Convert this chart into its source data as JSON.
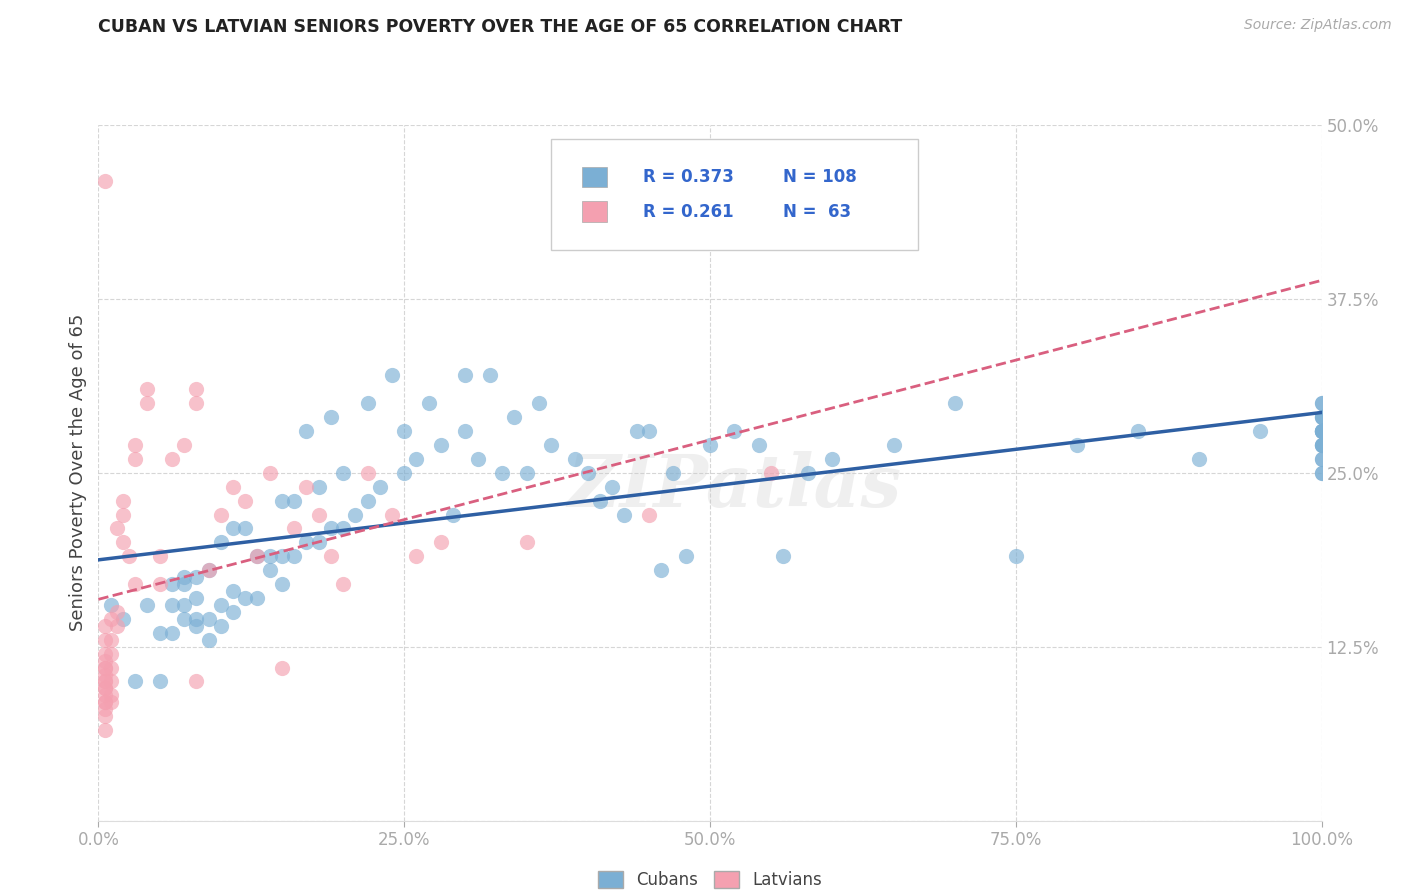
{
  "title": "CUBAN VS LATVIAN SENIORS POVERTY OVER THE AGE OF 65 CORRELATION CHART",
  "source": "Source: ZipAtlas.com",
  "ylabel": "Seniors Poverty Over the Age of 65",
  "xlim": [
    0.0,
    1.0
  ],
  "ylim": [
    0.0,
    0.5
  ],
  "xticks": [
    0.0,
    0.25,
    0.5,
    0.75,
    1.0
  ],
  "yticks": [
    0.0,
    0.125,
    0.25,
    0.375,
    0.5
  ],
  "xticklabels": [
    "0.0%",
    "25.0%",
    "50.0%",
    "75.0%",
    "100.0%"
  ],
  "yticklabels_right": [
    "",
    "12.5%",
    "25.0%",
    "37.5%",
    "50.0%"
  ],
  "cubans_R": "0.373",
  "cubans_N": "108",
  "latvians_R": "0.261",
  "latvians_N": "63",
  "blue_scatter": "#7BAFD4",
  "pink_scatter": "#F4A0B0",
  "line_blue": "#2E5FA3",
  "line_pink": "#D95F7F",
  "accent_color": "#3366CC",
  "legend_text_color": "#3366CC",
  "watermark": "ZIPatlas",
  "title_color": "#333333",
  "tick_color": "#5588CC",
  "cubans_x": [
    0.01,
    0.02,
    0.03,
    0.04,
    0.05,
    0.05,
    0.06,
    0.06,
    0.06,
    0.07,
    0.07,
    0.07,
    0.07,
    0.08,
    0.08,
    0.08,
    0.08,
    0.09,
    0.09,
    0.09,
    0.1,
    0.1,
    0.1,
    0.11,
    0.11,
    0.11,
    0.12,
    0.12,
    0.13,
    0.13,
    0.14,
    0.14,
    0.15,
    0.15,
    0.15,
    0.16,
    0.16,
    0.17,
    0.17,
    0.18,
    0.18,
    0.19,
    0.19,
    0.2,
    0.2,
    0.21,
    0.22,
    0.22,
    0.23,
    0.24,
    0.25,
    0.25,
    0.26,
    0.27,
    0.28,
    0.29,
    0.3,
    0.3,
    0.31,
    0.32,
    0.33,
    0.34,
    0.35,
    0.36,
    0.37,
    0.38,
    0.39,
    0.4,
    0.41,
    0.42,
    0.43,
    0.44,
    0.45,
    0.46,
    0.47,
    0.48,
    0.5,
    0.52,
    0.54,
    0.56,
    0.58,
    0.6,
    0.65,
    0.7,
    0.75,
    0.8,
    0.85,
    0.9,
    0.95,
    1.0,
    1.0,
    1.0,
    1.0,
    1.0,
    1.0,
    1.0,
    1.0,
    1.0,
    1.0,
    1.0,
    1.0,
    1.0,
    1.0,
    1.0,
    1.0,
    1.0,
    1.0,
    1.0
  ],
  "cubans_y": [
    0.155,
    0.145,
    0.1,
    0.155,
    0.135,
    0.1,
    0.135,
    0.155,
    0.17,
    0.145,
    0.155,
    0.17,
    0.175,
    0.14,
    0.145,
    0.16,
    0.175,
    0.13,
    0.145,
    0.18,
    0.14,
    0.155,
    0.2,
    0.15,
    0.165,
    0.21,
    0.16,
    0.21,
    0.16,
    0.19,
    0.18,
    0.19,
    0.17,
    0.19,
    0.23,
    0.19,
    0.23,
    0.2,
    0.28,
    0.2,
    0.24,
    0.21,
    0.29,
    0.21,
    0.25,
    0.22,
    0.23,
    0.3,
    0.24,
    0.32,
    0.25,
    0.28,
    0.26,
    0.3,
    0.27,
    0.22,
    0.28,
    0.32,
    0.26,
    0.32,
    0.25,
    0.29,
    0.25,
    0.3,
    0.27,
    0.42,
    0.26,
    0.25,
    0.23,
    0.24,
    0.22,
    0.28,
    0.28,
    0.18,
    0.25,
    0.19,
    0.27,
    0.28,
    0.27,
    0.19,
    0.25,
    0.26,
    0.27,
    0.3,
    0.19,
    0.27,
    0.28,
    0.26,
    0.28,
    0.25,
    0.27,
    0.28,
    0.29,
    0.28,
    0.27,
    0.26,
    0.28,
    0.3,
    0.29,
    0.25,
    0.27,
    0.28,
    0.29,
    0.28,
    0.27,
    0.26,
    0.28,
    0.3
  ],
  "latvians_x": [
    0.005,
    0.005,
    0.005,
    0.005,
    0.005,
    0.005,
    0.005,
    0.005,
    0.005,
    0.005,
    0.005,
    0.005,
    0.005,
    0.005,
    0.005,
    0.005,
    0.005,
    0.005,
    0.01,
    0.01,
    0.01,
    0.01,
    0.01,
    0.01,
    0.01,
    0.015,
    0.015,
    0.015,
    0.02,
    0.02,
    0.02,
    0.025,
    0.03,
    0.03,
    0.03,
    0.04,
    0.04,
    0.05,
    0.05,
    0.06,
    0.07,
    0.08,
    0.08,
    0.08,
    0.09,
    0.1,
    0.11,
    0.12,
    0.13,
    0.14,
    0.15,
    0.16,
    0.17,
    0.18,
    0.19,
    0.2,
    0.22,
    0.24,
    0.26,
    0.28,
    0.35,
    0.45,
    0.55
  ],
  "latvians_y": [
    0.46,
    0.12,
    0.13,
    0.14,
    0.1,
    0.11,
    0.09,
    0.08,
    0.095,
    0.085,
    0.1,
    0.105,
    0.11,
    0.115,
    0.095,
    0.085,
    0.075,
    0.065,
    0.11,
    0.13,
    0.12,
    0.145,
    0.1,
    0.09,
    0.085,
    0.14,
    0.15,
    0.21,
    0.2,
    0.23,
    0.22,
    0.19,
    0.17,
    0.26,
    0.27,
    0.3,
    0.31,
    0.19,
    0.17,
    0.26,
    0.27,
    0.3,
    0.31,
    0.1,
    0.18,
    0.22,
    0.24,
    0.23,
    0.19,
    0.25,
    0.11,
    0.21,
    0.24,
    0.22,
    0.19,
    0.17,
    0.25,
    0.22,
    0.19,
    0.2,
    0.2,
    0.22,
    0.25
  ]
}
